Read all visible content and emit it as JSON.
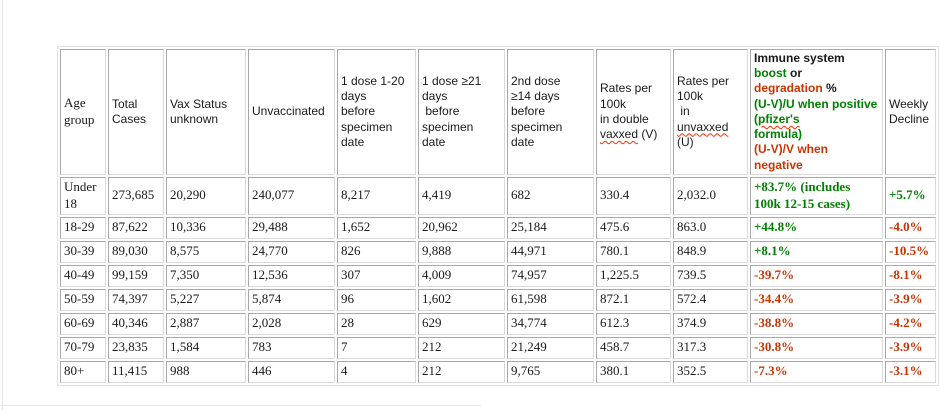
{
  "colors": {
    "green": "#008000",
    "red": "#cc3300",
    "grid": "#a8a8a8"
  },
  "table": {
    "columns": [
      {
        "id": "age-group",
        "serif": true,
        "segments": [
          {
            "t": "Age group"
          }
        ]
      },
      {
        "id": "total-cases",
        "segments": [
          {
            "t": "Total Cases"
          }
        ]
      },
      {
        "id": "vax-status-unknown",
        "segments": [
          {
            "t": "Vax Status unknown"
          }
        ]
      },
      {
        "id": "unvaccinated",
        "segments": [
          {
            "t": "Unvaccinated"
          }
        ]
      },
      {
        "id": "one-dose-1-20-days",
        "segments": [
          {
            "t": "1 dose 1-20\ndays\nbefore\nspecimen\ndate"
          }
        ]
      },
      {
        "id": "one-dose-21-plus-days",
        "segments": [
          {
            "t": "1 dose ≥21\ndays\n before\nspecimen\ndate"
          }
        ]
      },
      {
        "id": "second-dose-14-plus-days",
        "segments": [
          {
            "t": "2nd dose\n≥14 days\nbefore\nspecimen\ndate"
          }
        ]
      },
      {
        "id": "rates-per-100k-double-vaxxed",
        "segments": [
          {
            "t": "Rates per\n100k\nin double\n"
          },
          {
            "t": "vaxxed",
            "wavy": true
          },
          {
            "t": " (V)"
          }
        ]
      },
      {
        "id": "rates-per-100k-unvaxxed",
        "segments": [
          {
            "t": "Rates per\n100k\n in\n"
          },
          {
            "t": "unvaxxed",
            "wavy": true
          },
          {
            "t": "\n(U)"
          }
        ]
      },
      {
        "id": "immune-system-boost-or-degradation",
        "bold": true,
        "segments": [
          {
            "t": "Immune system\n"
          },
          {
            "t": "boost",
            "c": "green"
          },
          {
            "t": " or\n"
          },
          {
            "t": "degradation",
            "c": "red"
          },
          {
            "t": " %\n"
          },
          {
            "t": "(U-V)/U when positive (",
            "c": "green"
          },
          {
            "t": "pfizer's",
            "c": "green",
            "wavy": true
          },
          {
            "t": "\nformula)\n",
            "c": "green"
          },
          {
            "t": "(U-V)/V when negative",
            "c": "red"
          }
        ]
      },
      {
        "id": "weekly-decline",
        "segments": [
          {
            "t": "Weekly Decline"
          }
        ]
      }
    ],
    "rows": [
      [
        "Under 18",
        "273,685",
        "20,290",
        "240,077",
        "8,217",
        "4,419",
        "682",
        "330.4",
        "2,032.0",
        "+83.7% (includes 100k 12-15 cases)",
        "+5.7%"
      ],
      [
        "18-29",
        "87,622",
        "10,336",
        "29,488",
        "1,652",
        "20,962",
        "25,184",
        "475.6",
        "863.0",
        "+44.8%",
        "-4.0%"
      ],
      [
        "30-39",
        "89,030",
        "8,575",
        "24,770",
        "826",
        "9,888",
        "44,971",
        "780.1",
        "848.9",
        "+8.1%",
        "-10.5%"
      ],
      [
        "40-49",
        "99,159",
        "7,350",
        "12,536",
        "307",
        "4,009",
        "74,957",
        "1,225.5",
        "739.5",
        "-39.7%",
        "-8.1%"
      ],
      [
        "50-59",
        "74,397",
        "5,227",
        "5,874",
        "96",
        "1,602",
        "61,598",
        "872.1",
        "572.4",
        "-34.4%",
        "-3.9%"
      ],
      [
        "60-69",
        "40,346",
        "2,887",
        "2,028",
        "28",
        "629",
        "34,774",
        "612.3",
        "374.9",
        "-38.8%",
        "-4.2%"
      ],
      [
        "70-79",
        "23,835",
        "1,584",
        "783",
        "7",
        "212",
        "21,249",
        "458.7",
        "317.3",
        "-30.8%",
        "-3.9%"
      ],
      [
        "80+",
        "11,415",
        "988",
        "446",
        "4",
        "212",
        "9,765",
        "380.1",
        "352.5",
        "-7.3%",
        "-3.1%"
      ]
    ]
  }
}
